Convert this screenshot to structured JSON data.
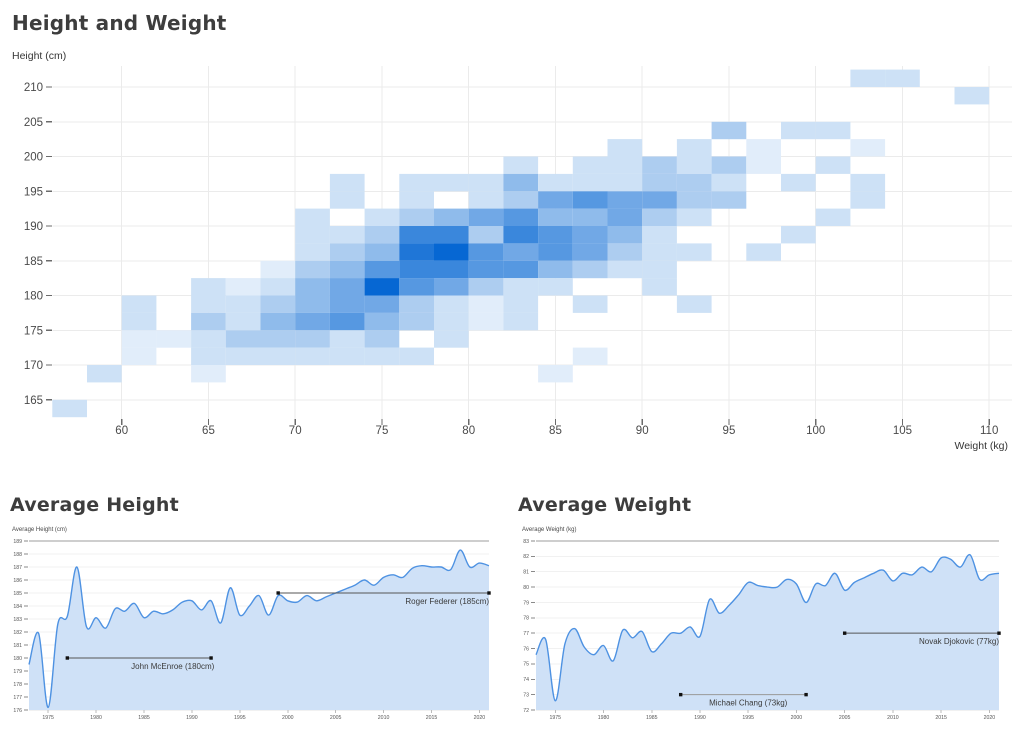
{
  "chart_data": [
    {
      "id": "height-weight-heatmap",
      "type": "heatmap",
      "title": "Height and Weight",
      "ylabel": "Height (cm)",
      "xlabel": "Weight (kg)",
      "x_ticks": [
        60,
        65,
        70,
        75,
        80,
        85,
        90,
        95,
        100,
        105,
        110
      ],
      "y_ticks": [
        165,
        170,
        175,
        180,
        185,
        190,
        195,
        200,
        205,
        210
      ],
      "x_domain": [
        56,
        111.3
      ],
      "y_domain": [
        160,
        212.5
      ],
      "bin_width_kg": 2,
      "bin_height_cm": 2.5,
      "intensity_scale": "1 lightest to 9 darkest",
      "max_color": "#0667d3",
      "grid_color": "#ebebeb",
      "tick_color": "#4a4a4a",
      "cells": [
        [
          102,
          210,
          2
        ],
        [
          104,
          210,
          2
        ],
        [
          108,
          207.5,
          2
        ],
        [
          94,
          202.5,
          3
        ],
        [
          98,
          202.5,
          2
        ],
        [
          100,
          202.5,
          2
        ],
        [
          88,
          200,
          2
        ],
        [
          92,
          200,
          2
        ],
        [
          96,
          200,
          1
        ],
        [
          102,
          200,
          1
        ],
        [
          82,
          197.5,
          2
        ],
        [
          86,
          197.5,
          2
        ],
        [
          88,
          197.5,
          2
        ],
        [
          90,
          197.5,
          3
        ],
        [
          92,
          197.5,
          2
        ],
        [
          94,
          197.5,
          3
        ],
        [
          96,
          197.5,
          1
        ],
        [
          100,
          197.5,
          2
        ],
        [
          72,
          195,
          2
        ],
        [
          76,
          195,
          2
        ],
        [
          78,
          195,
          2
        ],
        [
          80,
          195,
          2
        ],
        [
          82,
          195,
          4
        ],
        [
          84,
          195,
          2
        ],
        [
          86,
          195,
          2
        ],
        [
          88,
          195,
          2
        ],
        [
          90,
          195,
          3
        ],
        [
          92,
          195,
          3
        ],
        [
          94,
          195,
          2
        ],
        [
          98,
          195,
          2
        ],
        [
          102,
          195,
          2
        ],
        [
          72,
          192.5,
          2
        ],
        [
          76,
          192.5,
          2
        ],
        [
          80,
          192.5,
          2
        ],
        [
          82,
          192.5,
          3
        ],
        [
          84,
          192.5,
          5
        ],
        [
          86,
          192.5,
          6
        ],
        [
          88,
          192.5,
          5
        ],
        [
          90,
          192.5,
          5
        ],
        [
          92,
          192.5,
          3
        ],
        [
          94,
          192.5,
          3
        ],
        [
          102,
          192.5,
          2
        ],
        [
          70,
          190,
          2
        ],
        [
          74,
          190,
          2
        ],
        [
          76,
          190,
          3
        ],
        [
          78,
          190,
          4
        ],
        [
          80,
          190,
          5
        ],
        [
          82,
          190,
          6
        ],
        [
          84,
          190,
          4
        ],
        [
          86,
          190,
          4
        ],
        [
          88,
          190,
          5
        ],
        [
          90,
          190,
          3
        ],
        [
          92,
          190,
          2
        ],
        [
          100,
          190,
          2
        ],
        [
          70,
          187.5,
          2
        ],
        [
          72,
          187.5,
          2
        ],
        [
          74,
          187.5,
          3
        ],
        [
          76,
          187.5,
          7
        ],
        [
          78,
          187.5,
          7
        ],
        [
          80,
          187.5,
          3
        ],
        [
          82,
          187.5,
          7
        ],
        [
          84,
          187.5,
          6
        ],
        [
          86,
          187.5,
          5
        ],
        [
          88,
          187.5,
          4
        ],
        [
          90,
          187.5,
          2
        ],
        [
          98,
          187.5,
          2
        ],
        [
          70,
          185,
          2
        ],
        [
          72,
          185,
          3
        ],
        [
          74,
          185,
          4
        ],
        [
          76,
          185,
          8
        ],
        [
          78,
          185,
          9
        ],
        [
          80,
          185,
          6
        ],
        [
          82,
          185,
          5
        ],
        [
          84,
          185,
          6
        ],
        [
          86,
          185,
          5
        ],
        [
          88,
          185,
          3
        ],
        [
          90,
          185,
          2
        ],
        [
          92,
          185,
          2
        ],
        [
          96,
          185,
          2
        ],
        [
          68,
          182.5,
          1
        ],
        [
          70,
          182.5,
          3
        ],
        [
          72,
          182.5,
          4
        ],
        [
          74,
          182.5,
          6
        ],
        [
          76,
          182.5,
          7
        ],
        [
          78,
          182.5,
          7
        ],
        [
          80,
          182.5,
          6
        ],
        [
          82,
          182.5,
          6
        ],
        [
          84,
          182.5,
          4
        ],
        [
          86,
          182.5,
          3
        ],
        [
          88,
          182.5,
          2
        ],
        [
          90,
          182.5,
          2
        ],
        [
          64,
          180,
          2
        ],
        [
          66,
          180,
          1
        ],
        [
          68,
          180,
          2
        ],
        [
          70,
          180,
          4
        ],
        [
          72,
          180,
          5
        ],
        [
          74,
          180,
          9
        ],
        [
          76,
          180,
          6
        ],
        [
          78,
          180,
          5
        ],
        [
          80,
          180,
          3
        ],
        [
          82,
          180,
          2
        ],
        [
          84,
          180,
          2
        ],
        [
          90,
          180,
          2
        ],
        [
          60,
          177.5,
          2
        ],
        [
          64,
          177.5,
          2
        ],
        [
          66,
          177.5,
          2
        ],
        [
          68,
          177.5,
          3
        ],
        [
          70,
          177.5,
          4
        ],
        [
          72,
          177.5,
          5
        ],
        [
          74,
          177.5,
          5
        ],
        [
          76,
          177.5,
          3
        ],
        [
          78,
          177.5,
          2
        ],
        [
          80,
          177.5,
          1
        ],
        [
          82,
          177.5,
          2
        ],
        [
          86,
          177.5,
          2
        ],
        [
          92,
          177.5,
          2
        ],
        [
          60,
          175,
          2
        ],
        [
          64,
          175,
          3
        ],
        [
          66,
          175,
          2
        ],
        [
          68,
          175,
          4
        ],
        [
          70,
          175,
          5
        ],
        [
          72,
          175,
          6
        ],
        [
          74,
          175,
          4
        ],
        [
          76,
          175,
          3
        ],
        [
          78,
          175,
          2
        ],
        [
          80,
          175,
          1
        ],
        [
          82,
          175,
          2
        ],
        [
          60,
          172.5,
          1
        ],
        [
          62,
          172.5,
          1
        ],
        [
          64,
          172.5,
          2
        ],
        [
          66,
          172.5,
          3
        ],
        [
          68,
          172.5,
          3
        ],
        [
          70,
          172.5,
          3
        ],
        [
          72,
          172.5,
          2
        ],
        [
          74,
          172.5,
          3
        ],
        [
          78,
          172.5,
          2
        ],
        [
          60,
          170,
          1
        ],
        [
          64,
          170,
          2
        ],
        [
          66,
          170,
          2
        ],
        [
          68,
          170,
          2
        ],
        [
          70,
          170,
          2
        ],
        [
          72,
          170,
          2
        ],
        [
          74,
          170,
          2
        ],
        [
          76,
          170,
          2
        ],
        [
          86,
          170,
          1
        ],
        [
          58,
          167.5,
          2
        ],
        [
          64,
          167.5,
          1
        ],
        [
          84,
          167.5,
          1
        ],
        [
          56,
          162.5,
          2
        ]
      ]
    },
    {
      "id": "average-height",
      "type": "area",
      "title": "Average Height",
      "ylabel": "Average Height (cm)",
      "ylim": [
        176,
        189
      ],
      "y_ticks": [
        176,
        177,
        178,
        179,
        180,
        181,
        182,
        183,
        184,
        185,
        186,
        187,
        188,
        189
      ],
      "x_ticks": [
        1975,
        1980,
        1985,
        1990,
        1995,
        2000,
        2005,
        2010,
        2015,
        2020
      ],
      "year_start": 1973,
      "year_end": 2021,
      "values": [
        179.5,
        181.9,
        176.2,
        182.6,
        183.2,
        187.0,
        182.4,
        183.1,
        182.3,
        183.8,
        183.6,
        184.2,
        183.1,
        183.6,
        183.4,
        183.7,
        184.3,
        184.4,
        183.7,
        184.4,
        182.7,
        185.4,
        183.3,
        184.0,
        184.8,
        183.3,
        184.8,
        184.4,
        184.3,
        184.8,
        184.4,
        184.7,
        185.0,
        185.3,
        185.6,
        186.0,
        185.6,
        186.2,
        186.4,
        186.2,
        186.9,
        187.1,
        187.0,
        187.0,
        186.8,
        188.3,
        187.0,
        187.3,
        187.1
      ],
      "ref_line_y": 189,
      "line_color": "#4e92e2",
      "fill_color": "#cfe1f7",
      "annotations": [
        {
          "label": "John McEnroe (180cm)",
          "y": 180,
          "x1": 1977,
          "x2": 1992,
          "label_anchor": "middle",
          "label_x": 1988,
          "line_color": "#555555"
        },
        {
          "label": "Roger Federer (185cm)",
          "y": 185,
          "x1": 1999,
          "x2": 2021,
          "label_anchor": "end",
          "label_x": 2021,
          "line_color": "#555555"
        }
      ]
    },
    {
      "id": "average-weight",
      "type": "area",
      "title": "Average Weight",
      "ylabel": "Average Weight (kg)",
      "ylim": [
        72,
        83
      ],
      "y_ticks": [
        72,
        73,
        74,
        75,
        76,
        77,
        78,
        79,
        80,
        81,
        82,
        83
      ],
      "x_ticks": [
        1975,
        1980,
        1985,
        1990,
        1995,
        2000,
        2005,
        2010,
        2015,
        2020
      ],
      "year_start": 1973,
      "year_end": 2021,
      "values": [
        75.6,
        76.6,
        72.6,
        76.3,
        77.3,
        76.1,
        75.6,
        76.2,
        75.2,
        77.2,
        76.7,
        77.1,
        75.8,
        76.3,
        77.0,
        77.0,
        77.4,
        76.8,
        79.2,
        78.3,
        78.8,
        79.5,
        80.3,
        80.1,
        80.0,
        80.0,
        80.5,
        80.2,
        79.0,
        80.2,
        80.1,
        80.9,
        79.8,
        80.3,
        80.6,
        80.9,
        81.1,
        80.4,
        80.9,
        80.8,
        81.3,
        81.0,
        81.9,
        81.8,
        81.3,
        82.1,
        80.5,
        80.8,
        80.9
      ],
      "ref_line_y": 83,
      "line_color": "#4e92e2",
      "fill_color": "#cfe1f7",
      "annotations": [
        {
          "label": "Michael Chang (73kg)",
          "y": 73,
          "x1": 1988,
          "x2": 2001,
          "label_anchor": "middle",
          "label_x": 1995,
          "line_color": "#999999"
        },
        {
          "label": "Novak Djokovic (77kg)",
          "y": 77,
          "x1": 2005,
          "x2": 2021,
          "label_anchor": "end",
          "label_x": 2021,
          "line_color": "#555555"
        }
      ]
    }
  ]
}
